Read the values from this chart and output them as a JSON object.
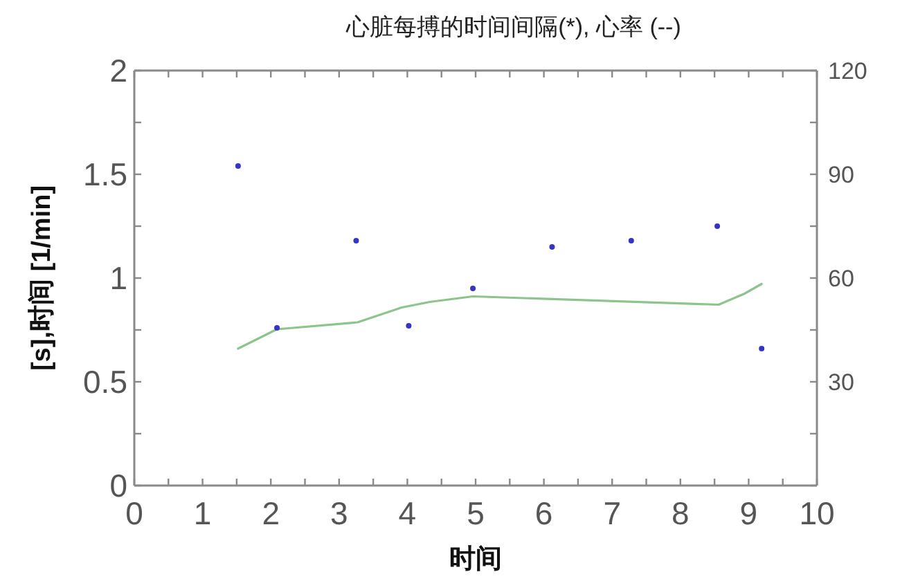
{
  "chart_data": {
    "type": "scatter",
    "title": "心脏每搏的时间间隔(*), 心率 (--)",
    "xlabel": "时间",
    "ylabel": "[s],时间 [1/min]",
    "series": [
      {
        "marker": "circle",
        "color": "#3434c8",
        "x": [
          1.52,
          2.09,
          3.25,
          4.02,
          4.96,
          6.12,
          7.28,
          8.54,
          9.19
        ],
        "values": [
          1.54,
          0.76,
          1.18,
          0.77,
          0.95,
          1.15,
          1.18,
          1.25,
          0.66
        ]
      },
      {
        "type": "line",
        "axis": "y2",
        "color": "#8cc48c",
        "x": [
          1.52,
          2.09,
          3.27,
          3.92,
          4.33,
          4.96,
          8.56,
          8.94,
          9.19
        ],
        "values": [
          39.6,
          45.2,
          47.2,
          51.5,
          53.1,
          54.7,
          52.3,
          55.5,
          58.3
        ]
      }
    ],
    "xlim": [
      0,
      10
    ],
    "xticks": [
      0,
      {
        "value": 0.5,
        "label": null
      },
      1,
      {
        "value": 1.5,
        "label": null
      },
      2,
      {
        "value": 2.5,
        "label": null
      },
      3,
      {
        "value": 3.5,
        "label": null
      },
      4,
      {
        "value": 4.5,
        "label": null
      },
      5,
      {
        "value": 5.5,
        "label": null
      },
      6,
      {
        "value": 6.5,
        "label": null
      },
      7,
      {
        "value": 7.5,
        "label": null
      },
      8,
      {
        "value": 8.5,
        "label": null
      },
      9,
      {
        "value": 9.5,
        "label": null
      },
      10
    ],
    "ylim": [
      0,
      2
    ],
    "yticks": [
      0,
      {
        "value": 0.25,
        "label": null
      },
      0.5,
      {
        "value": 0.75,
        "label": null
      },
      1,
      {
        "value": 1.25,
        "label": null
      },
      1.5,
      {
        "value": 1.75,
        "label": null
      },
      2
    ],
    "y2lim": [
      0,
      120
    ],
    "y2ticks": [
      {
        "value": 0,
        "label": null
      },
      {
        "value": 15,
        "label": null
      },
      30,
      {
        "value": 45,
        "label": null
      },
      60,
      {
        "value": 75,
        "label": null
      },
      90,
      {
        "value": 105,
        "label": null
      },
      120
    ]
  }
}
